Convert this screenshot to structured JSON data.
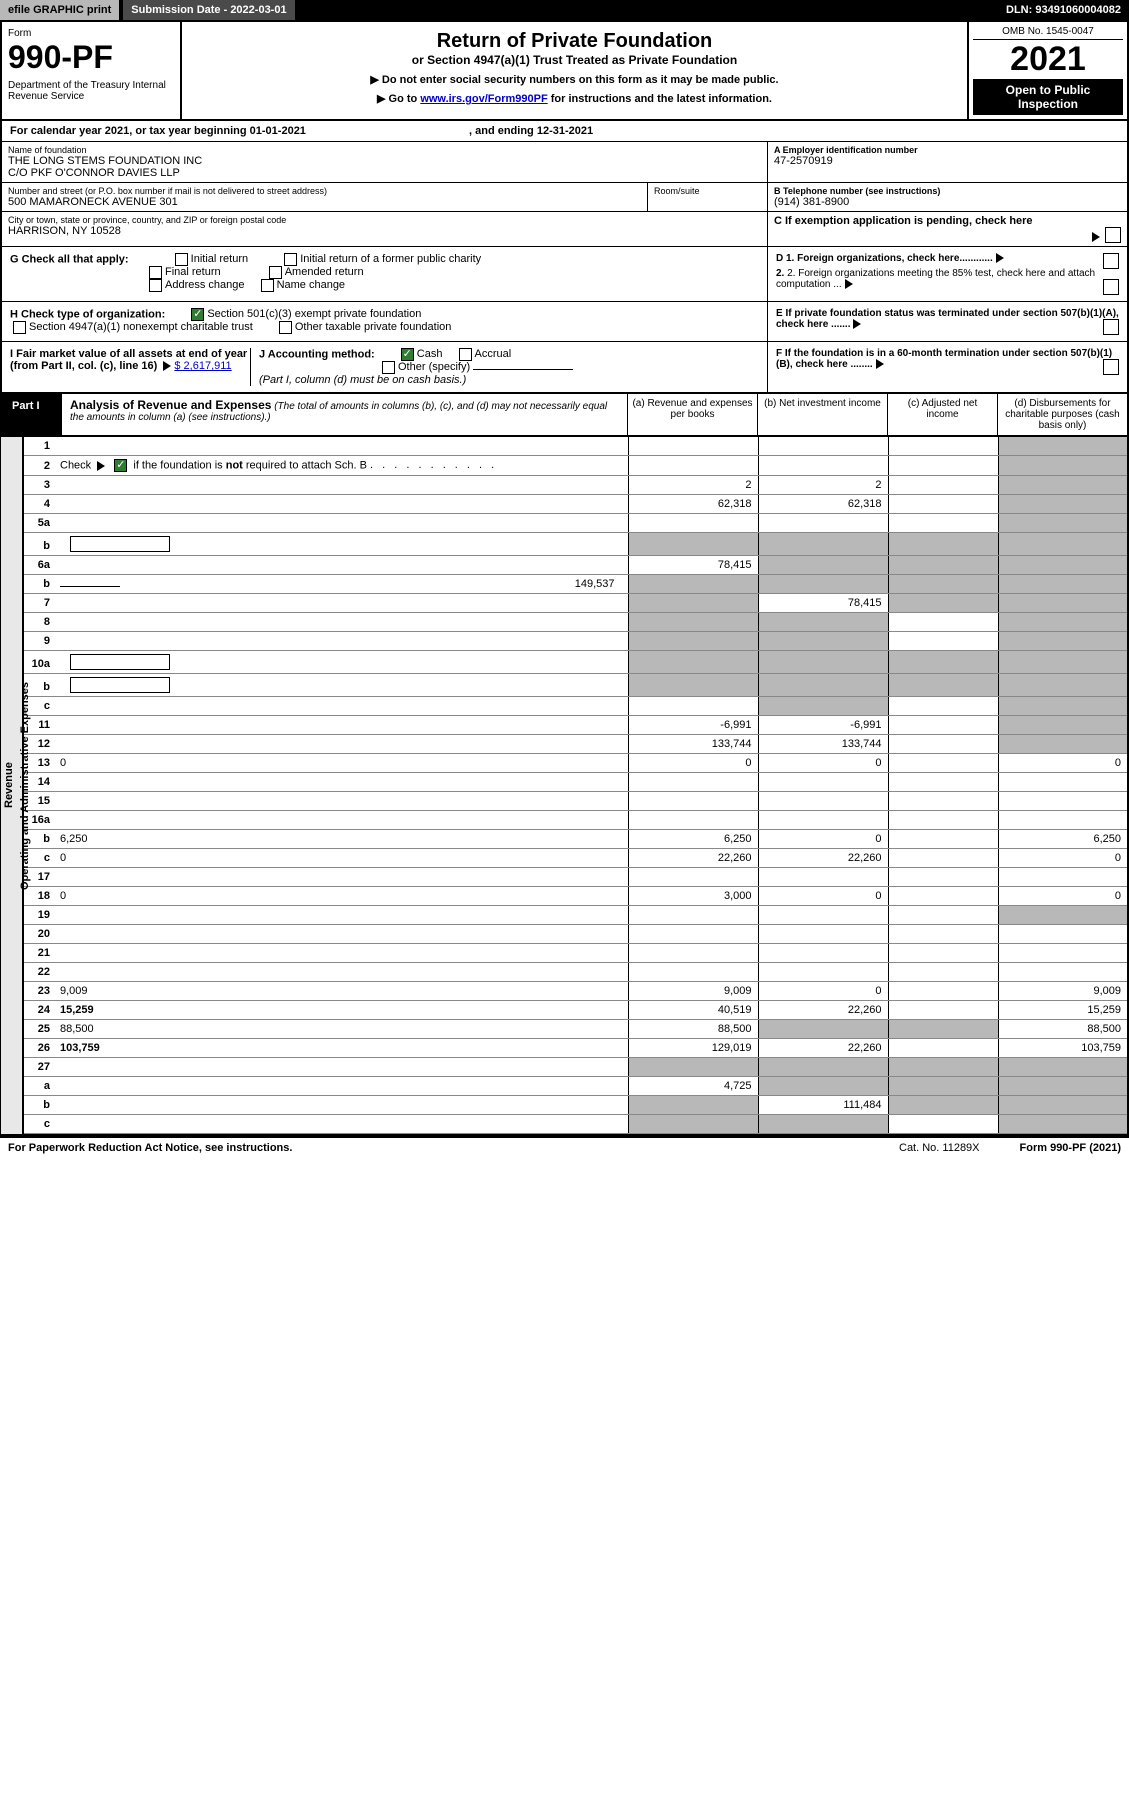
{
  "topbar": {
    "efile": "efile GRAPHIC print",
    "subdate_label": "Submission Date - 2022-03-01",
    "dln": "DLN: 93491060004082"
  },
  "header": {
    "form": "Form",
    "num": "990-PF",
    "dept": "Department of the Treasury\nInternal Revenue Service",
    "title": "Return of Private Foundation",
    "subtitle": "or Section 4947(a)(1) Trust Treated as Private Foundation",
    "note1": "▶ Do not enter social security numbers on this form as it may be made public.",
    "note2_pre": "▶ Go to ",
    "note2_link": "www.irs.gov/Form990PF",
    "note2_post": " for instructions and the latest information.",
    "omb": "OMB No. 1545-0047",
    "year": "2021",
    "open": "Open to Public Inspection"
  },
  "calyear": {
    "pre": "For calendar year 2021, or tax year beginning ",
    "begin": "01-01-2021",
    "mid": " , and ending ",
    "end": "12-31-2021"
  },
  "info": {
    "name_label": "Name of foundation",
    "name1": "THE LONG STEMS FOUNDATION INC",
    "name2": "C/O PKF O'CONNOR DAVIES LLP",
    "ein_label": "A Employer identification number",
    "ein": "47-2570919",
    "street_label": "Number and street (or P.O. box number if mail is not delivered to street address)",
    "street": "500 MAMARONECK AVENUE 301",
    "room_label": "Room/suite",
    "phone_label": "B Telephone number (see instructions)",
    "phone": "(914) 381-8900",
    "city_label": "City or town, state or province, country, and ZIP or foreign postal code",
    "city": "HARRISON, NY  10528",
    "c_label": "C If exemption application is pending, check here"
  },
  "checks": {
    "g_label": "G Check all that apply:",
    "g_opts": [
      "Initial return",
      "Initial return of a former public charity",
      "Final return",
      "Amended return",
      "Address change",
      "Name change"
    ],
    "d1": "D 1. Foreign organizations, check here............",
    "d2": "2. Foreign organizations meeting the 85% test, check here and attach computation ...",
    "h_label": "H Check type of organization:",
    "h1": "Section 501(c)(3) exempt private foundation",
    "h2": "Section 4947(a)(1) nonexempt charitable trust",
    "h3": "Other taxable private foundation",
    "e_label": "E  If private foundation status was terminated under section 507(b)(1)(A), check here .......",
    "i_label": "I Fair market value of all assets at end of year (from Part II, col. (c), line 16)",
    "i_val": "$  2,617,911",
    "j_label": "J Accounting method:",
    "j_cash": "Cash",
    "j_accrual": "Accrual",
    "j_other": "Other (specify)",
    "j_note": "(Part I, column (d) must be on cash basis.)",
    "f_label": "F  If the foundation is in a 60-month termination under section 507(b)(1)(B), check here ........"
  },
  "part1": {
    "label": "Part I",
    "title": "Analysis of Revenue and Expenses",
    "title_note": "(The total of amounts in columns (b), (c), and (d) may not necessarily equal the amounts in column (a) (see instructions).)",
    "cols": {
      "a": "(a) Revenue and expenses per books",
      "b": "(b) Net investment income",
      "c": "(c) Adjusted net income",
      "d": "(d) Disbursements for charitable purposes (cash basis only)"
    }
  },
  "side_revenue": "Revenue",
  "side_expenses": "Operating and Administrative Expenses",
  "rows": [
    {
      "n": "1",
      "d": "",
      "a": "",
      "b": "",
      "c": "",
      "d_shade": true
    },
    {
      "n": "2",
      "d": "",
      "a": "",
      "b": "",
      "c": "",
      "d_shade": true,
      "check": true
    },
    {
      "n": "3",
      "d": "",
      "a": "2",
      "b": "2",
      "c": "",
      "d_shade": true
    },
    {
      "n": "4",
      "d": "",
      "a": "62,318",
      "b": "62,318",
      "c": "",
      "d_shade": true
    },
    {
      "n": "5a",
      "d": "",
      "a": "",
      "b": "",
      "c": "",
      "d_shade": true
    },
    {
      "n": "b",
      "d": "",
      "a": "",
      "b": "",
      "c": "",
      "a_shade": true,
      "b_shade": true,
      "c_shade": true,
      "d_shade": true,
      "box": true
    },
    {
      "n": "6a",
      "d": "",
      "a": "78,415",
      "b": "",
      "c": "",
      "b_shade": true,
      "c_shade": true,
      "d_shade": true
    },
    {
      "n": "b",
      "d": "",
      "extra": "149,537",
      "a": "",
      "b": "",
      "c": "",
      "a_shade": true,
      "b_shade": true,
      "c_shade": true,
      "d_shade": true
    },
    {
      "n": "7",
      "d": "",
      "a": "",
      "b": "78,415",
      "c": "",
      "a_shade": true,
      "c_shade": true,
      "d_shade": true
    },
    {
      "n": "8",
      "d": "",
      "a": "",
      "b": "",
      "c": "",
      "a_shade": true,
      "b_shade": true,
      "d_shade": true
    },
    {
      "n": "9",
      "d": "",
      "a": "",
      "b": "",
      "c": "",
      "a_shade": true,
      "b_shade": true,
      "d_shade": true
    },
    {
      "n": "10a",
      "d": "",
      "a": "",
      "b": "",
      "c": "",
      "a_shade": true,
      "b_shade": true,
      "c_shade": true,
      "d_shade": true,
      "box": true
    },
    {
      "n": "b",
      "d": "",
      "a": "",
      "b": "",
      "c": "",
      "a_shade": true,
      "b_shade": true,
      "c_shade": true,
      "d_shade": true,
      "box": true
    },
    {
      "n": "c",
      "d": "",
      "a": "",
      "b": "",
      "c": "",
      "b_shade": true,
      "d_shade": true
    },
    {
      "n": "11",
      "d": "",
      "a": "-6,991",
      "b": "-6,991",
      "c": "",
      "d_shade": true
    },
    {
      "n": "12",
      "d": "",
      "a": "133,744",
      "b": "133,744",
      "c": "",
      "d_shade": true,
      "bold": true
    },
    {
      "n": "13",
      "d": "0",
      "a": "0",
      "b": "0",
      "c": ""
    },
    {
      "n": "14",
      "d": "",
      "a": "",
      "b": "",
      "c": ""
    },
    {
      "n": "15",
      "d": "",
      "a": "",
      "b": "",
      "c": ""
    },
    {
      "n": "16a",
      "d": "",
      "a": "",
      "b": "",
      "c": ""
    },
    {
      "n": "b",
      "d": "6,250",
      "a": "6,250",
      "b": "0",
      "c": ""
    },
    {
      "n": "c",
      "d": "0",
      "a": "22,260",
      "b": "22,260",
      "c": ""
    },
    {
      "n": "17",
      "d": "",
      "a": "",
      "b": "",
      "c": ""
    },
    {
      "n": "18",
      "d": "0",
      "a": "3,000",
      "b": "0",
      "c": ""
    },
    {
      "n": "19",
      "d": "",
      "a": "",
      "b": "",
      "c": "",
      "d_shade": true
    },
    {
      "n": "20",
      "d": "",
      "a": "",
      "b": "",
      "c": ""
    },
    {
      "n": "21",
      "d": "",
      "a": "",
      "b": "",
      "c": ""
    },
    {
      "n": "22",
      "d": "",
      "a": "",
      "b": "",
      "c": ""
    },
    {
      "n": "23",
      "d": "9,009",
      "a": "9,009",
      "b": "0",
      "c": ""
    },
    {
      "n": "24",
      "d": "15,259",
      "a": "40,519",
      "b": "22,260",
      "c": "",
      "bold": true
    },
    {
      "n": "25",
      "d": "88,500",
      "a": "88,500",
      "b": "",
      "c": "",
      "b_shade": true,
      "c_shade": true
    },
    {
      "n": "26",
      "d": "103,759",
      "a": "129,019",
      "b": "22,260",
      "c": "",
      "bold": true
    },
    {
      "n": "27",
      "d": "",
      "a": "",
      "b": "",
      "c": "",
      "a_shade": true,
      "b_shade": true,
      "c_shade": true,
      "d_shade": true
    },
    {
      "n": "a",
      "d": "",
      "a": "4,725",
      "b": "",
      "c": "",
      "b_shade": true,
      "c_shade": true,
      "d_shade": true,
      "bold": true
    },
    {
      "n": "b",
      "d": "",
      "a": "",
      "b": "111,484",
      "c": "",
      "a_shade": true,
      "c_shade": true,
      "d_shade": true,
      "bold": true
    },
    {
      "n": "c",
      "d": "",
      "a": "",
      "b": "",
      "c": "",
      "a_shade": true,
      "b_shade": true,
      "d_shade": true,
      "bold": true
    }
  ],
  "footer": {
    "left": "For Paperwork Reduction Act Notice, see instructions.",
    "mid": "Cat. No. 11289X",
    "right": "Form 990-PF (2021)"
  }
}
